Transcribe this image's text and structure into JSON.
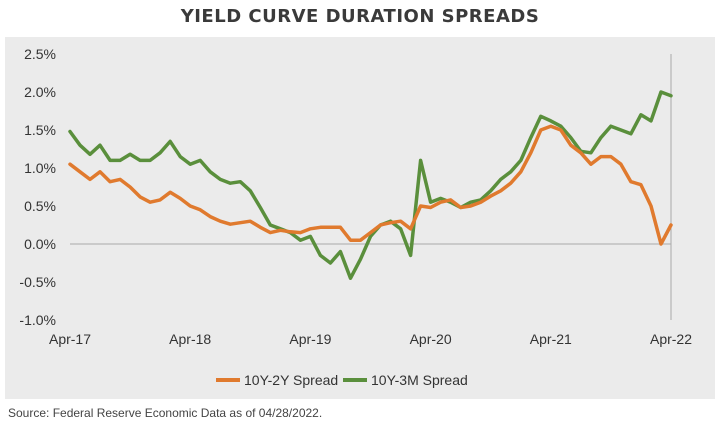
{
  "title": "YIELD CURVE DURATION SPREADS",
  "source": "Source: Federal Reserve Economic Data as of 04/28/2022.",
  "chart_data": {
    "type": "line",
    "title": "YIELD CURVE DURATION SPREADS",
    "xlabel": "",
    "ylabel": "",
    "x_tick_labels": [
      "Apr-17",
      "Apr-18",
      "Apr-19",
      "Apr-20",
      "Apr-21",
      "Apr-22"
    ],
    "y_tick_labels": [
      "2.5%",
      "2.0%",
      "1.5%",
      "1.0%",
      "0.5%",
      "0.0%",
      "-0.5%",
      "-1.0%"
    ],
    "y_tick_values": [
      2.5,
      2.0,
      1.5,
      1.0,
      0.5,
      0.0,
      -0.5,
      -1.0
    ],
    "ylim": [
      -1.0,
      2.5
    ],
    "xlim": [
      "2017-04",
      "2022-04"
    ],
    "grid": false,
    "legend_position": "bottom",
    "series": [
      {
        "name": "10Y-2Y Spread",
        "color": "#e07a2e",
        "x": [
          "2017-04",
          "2017-05",
          "2017-06",
          "2017-07",
          "2017-08",
          "2017-09",
          "2017-10",
          "2017-11",
          "2017-12",
          "2018-01",
          "2018-02",
          "2018-03",
          "2018-04",
          "2018-05",
          "2018-06",
          "2018-07",
          "2018-08",
          "2018-09",
          "2018-10",
          "2018-11",
          "2018-12",
          "2019-01",
          "2019-02",
          "2019-03",
          "2019-04",
          "2019-05",
          "2019-06",
          "2019-07",
          "2019-08",
          "2019-09",
          "2019-10",
          "2019-11",
          "2019-12",
          "2020-01",
          "2020-02",
          "2020-03",
          "2020-04",
          "2020-05",
          "2020-06",
          "2020-07",
          "2020-08",
          "2020-09",
          "2020-10",
          "2020-11",
          "2020-12",
          "2021-01",
          "2021-02",
          "2021-03",
          "2021-04",
          "2021-05",
          "2021-06",
          "2021-07",
          "2021-08",
          "2021-09",
          "2021-10",
          "2021-11",
          "2021-12",
          "2022-01",
          "2022-02",
          "2022-03",
          "2022-04"
        ],
        "values": [
          1.05,
          0.95,
          0.85,
          0.95,
          0.82,
          0.85,
          0.75,
          0.62,
          0.55,
          0.58,
          0.68,
          0.6,
          0.5,
          0.45,
          0.36,
          0.3,
          0.26,
          0.28,
          0.3,
          0.22,
          0.15,
          0.18,
          0.16,
          0.15,
          0.2,
          0.22,
          0.22,
          0.22,
          0.05,
          0.05,
          0.15,
          0.25,
          0.28,
          0.3,
          0.2,
          0.5,
          0.48,
          0.55,
          0.58,
          0.48,
          0.5,
          0.55,
          0.63,
          0.7,
          0.8,
          0.95,
          1.2,
          1.5,
          1.55,
          1.5,
          1.3,
          1.2,
          1.05,
          1.15,
          1.15,
          1.05,
          0.82,
          0.78,
          0.5,
          0.0,
          0.25
        ]
      },
      {
        "name": "10Y-3M Spread",
        "color": "#5a8f3c",
        "x": [
          "2017-04",
          "2017-05",
          "2017-06",
          "2017-07",
          "2017-08",
          "2017-09",
          "2017-10",
          "2017-11",
          "2017-12",
          "2018-01",
          "2018-02",
          "2018-03",
          "2018-04",
          "2018-05",
          "2018-06",
          "2018-07",
          "2018-08",
          "2018-09",
          "2018-10",
          "2018-11",
          "2018-12",
          "2019-01",
          "2019-02",
          "2019-03",
          "2019-04",
          "2019-05",
          "2019-06",
          "2019-07",
          "2019-08",
          "2019-09",
          "2019-10",
          "2019-11",
          "2019-12",
          "2020-01",
          "2020-02",
          "2020-03",
          "2020-04",
          "2020-05",
          "2020-06",
          "2020-07",
          "2020-08",
          "2020-09",
          "2020-10",
          "2020-11",
          "2020-12",
          "2021-01",
          "2021-02",
          "2021-03",
          "2021-04",
          "2021-05",
          "2021-06",
          "2021-07",
          "2021-08",
          "2021-09",
          "2021-10",
          "2021-11",
          "2021-12",
          "2022-01",
          "2022-02",
          "2022-03",
          "2022-04"
        ],
        "values": [
          1.48,
          1.3,
          1.18,
          1.3,
          1.1,
          1.1,
          1.18,
          1.1,
          1.1,
          1.2,
          1.35,
          1.15,
          1.05,
          1.1,
          0.95,
          0.85,
          0.8,
          0.82,
          0.7,
          0.48,
          0.25,
          0.2,
          0.15,
          0.05,
          0.1,
          -0.15,
          -0.25,
          -0.1,
          -0.45,
          -0.2,
          0.1,
          0.25,
          0.3,
          0.2,
          -0.15,
          1.1,
          0.55,
          0.6,
          0.55,
          0.48,
          0.55,
          0.58,
          0.7,
          0.85,
          0.95,
          1.1,
          1.4,
          1.68,
          1.62,
          1.55,
          1.4,
          1.22,
          1.2,
          1.4,
          1.55,
          1.5,
          1.45,
          1.7,
          1.62,
          2.0,
          1.95
        ]
      }
    ]
  }
}
